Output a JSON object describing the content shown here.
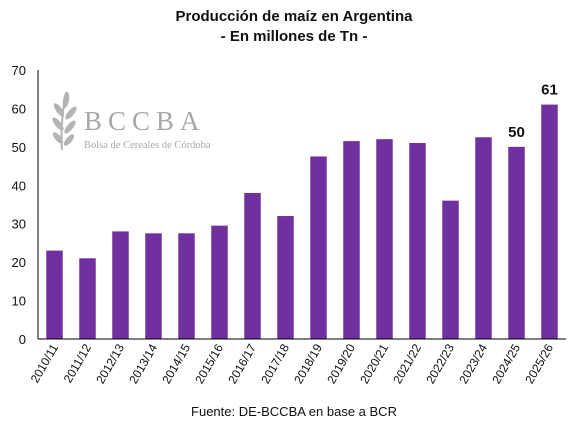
{
  "chart_data": {
    "type": "bar",
    "title": "Producción de maíz en Argentina",
    "subtitle": "- En millones de Tn -",
    "categories": [
      "2010/11",
      "2011/12",
      "2012/13",
      "2013/14",
      "2014/15",
      "2015/16",
      "2016/17",
      "2017/18",
      "2018/19",
      "2019/20",
      "2020/21",
      "2021/22",
      "2022/23",
      "2023/24",
      "2024/25",
      "2025/26"
    ],
    "values": [
      23,
      21,
      28,
      27.5,
      27.5,
      29.5,
      38,
      32,
      47.5,
      51.5,
      52,
      51,
      36,
      52.5,
      50,
      61
    ],
    "data_labels": [
      {
        "category": "2024/25",
        "text": "50"
      },
      {
        "category": "2025/26",
        "text": "61"
      }
    ],
    "ylim": [
      0,
      70
    ],
    "yticks": [
      0,
      10,
      20,
      30,
      40,
      50,
      60,
      70
    ],
    "bar_color": "#7030a0",
    "grid": false,
    "legend": "none",
    "source": "Fuente: DE-BCCBA en base a BCR"
  },
  "watermark": {
    "letters": "BCCBA",
    "name": "Bolsa de Cereales de Córdoba",
    "icon": "wheat-icon"
  }
}
